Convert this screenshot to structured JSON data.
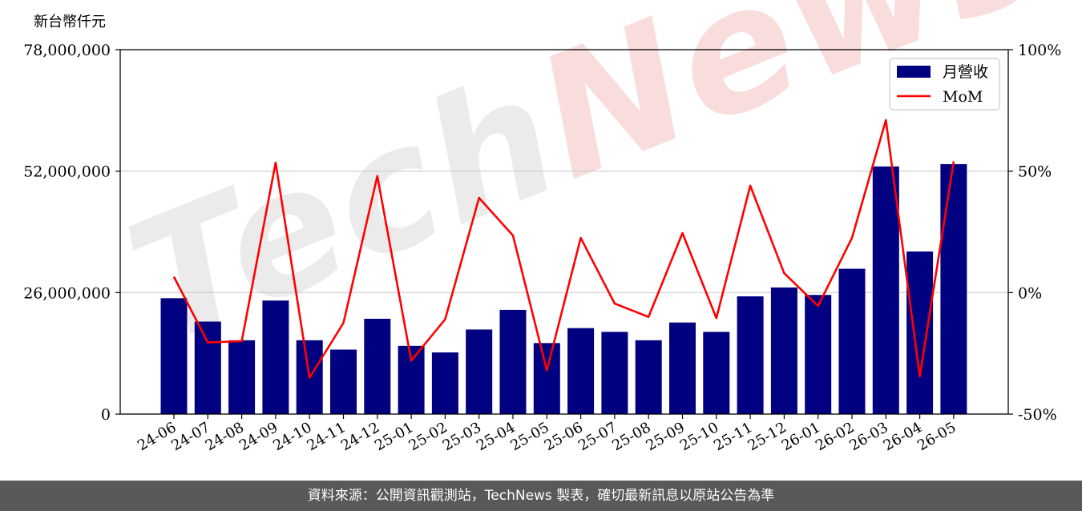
{
  "chart_data": {
    "type": "bar",
    "title": "",
    "ylabel": "新台幣仟元",
    "categories": [
      "24-06",
      "24-07",
      "24-08",
      "24-09",
      "24-10",
      "24-11",
      "24-12",
      "25-01",
      "25-02",
      "25-03",
      "25-04",
      "25-05",
      "25-06",
      "25-07",
      "25-08",
      "25-09",
      "25-10",
      "25-11",
      "25-12",
      "26-01",
      "26-02",
      "26-03",
      "26-04",
      "26-05"
    ],
    "series": [
      {
        "name": "月營收",
        "type": "bar",
        "axis": "left",
        "color": "#000080",
        "values": [
          24800000,
          19800000,
          15800000,
          24300000,
          15800000,
          13800000,
          20400000,
          14600000,
          13200000,
          18100000,
          22300000,
          15200000,
          18400000,
          17600000,
          15800000,
          19600000,
          17600000,
          25200000,
          27100000,
          25500000,
          31100000,
          53000000,
          34800000,
          53500000
        ]
      },
      {
        "name": "MoM",
        "type": "line",
        "axis": "right",
        "color": "#ff0000",
        "unit": "%",
        "values": [
          6.5,
          -20.5,
          -20,
          53.5,
          -35,
          -12.5,
          48,
          -28,
          -11,
          39,
          23.5,
          -32,
          22.5,
          -4.5,
          -10,
          24.5,
          -10.5,
          44,
          8,
          -5.5,
          22.5,
          71,
          -34.5,
          54
        ]
      }
    ],
    "left_axis": {
      "ylim": [
        0,
        78000000
      ],
      "ticks": [
        0,
        26000000,
        52000000,
        78000000
      ],
      "tick_labels": [
        "0",
        "26,000,000",
        "52,000,000",
        "78,000,000"
      ]
    },
    "right_axis": {
      "ylim": [
        -50,
        100
      ],
      "ticks": [
        -50,
        0,
        50,
        100
      ],
      "tick_labels": [
        "-50%",
        "0%",
        "50%",
        "100%"
      ]
    },
    "grid": "horizontal",
    "legend_position": "top-right"
  },
  "watermark": {
    "part1": "Tech",
    "part2": "News"
  },
  "footer": {
    "text": "資料來源：公開資訊觀測站，TechNews 製表，確切最新訊息以原站公告為準"
  }
}
